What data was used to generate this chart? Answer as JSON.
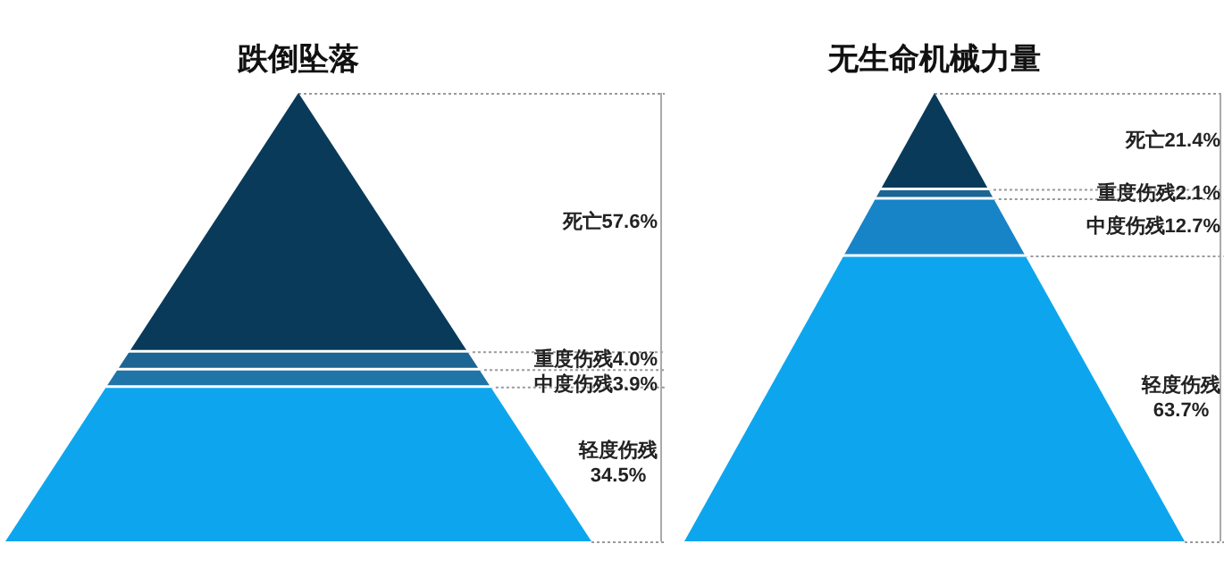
{
  "chart_data": [
    {
      "type": "other",
      "title": "跌倒坠落",
      "categories": [
        "死亡",
        "重度伤残",
        "中度伤残",
        "轻度伤残"
      ],
      "values": [
        57.6,
        4.0,
        3.9,
        34.5
      ],
      "value_labels": [
        "57.6%",
        "4.0%",
        "3.9%",
        "34.5%"
      ],
      "colors": [
        "#093a59",
        "#1d6593",
        "#1f74a8",
        "#0da6ee"
      ]
    },
    {
      "type": "other",
      "title": "无生命机械力量",
      "categories": [
        "死亡",
        "重度伤残",
        "中度伤残",
        "轻度伤残"
      ],
      "values": [
        21.4,
        2.1,
        12.7,
        63.7
      ],
      "value_labels": [
        "21.4%",
        "2.1%",
        "12.7%",
        "63.7%"
      ],
      "colors": [
        "#093a59",
        "#1d6593",
        "#1784c8",
        "#0da6ee"
      ]
    }
  ]
}
